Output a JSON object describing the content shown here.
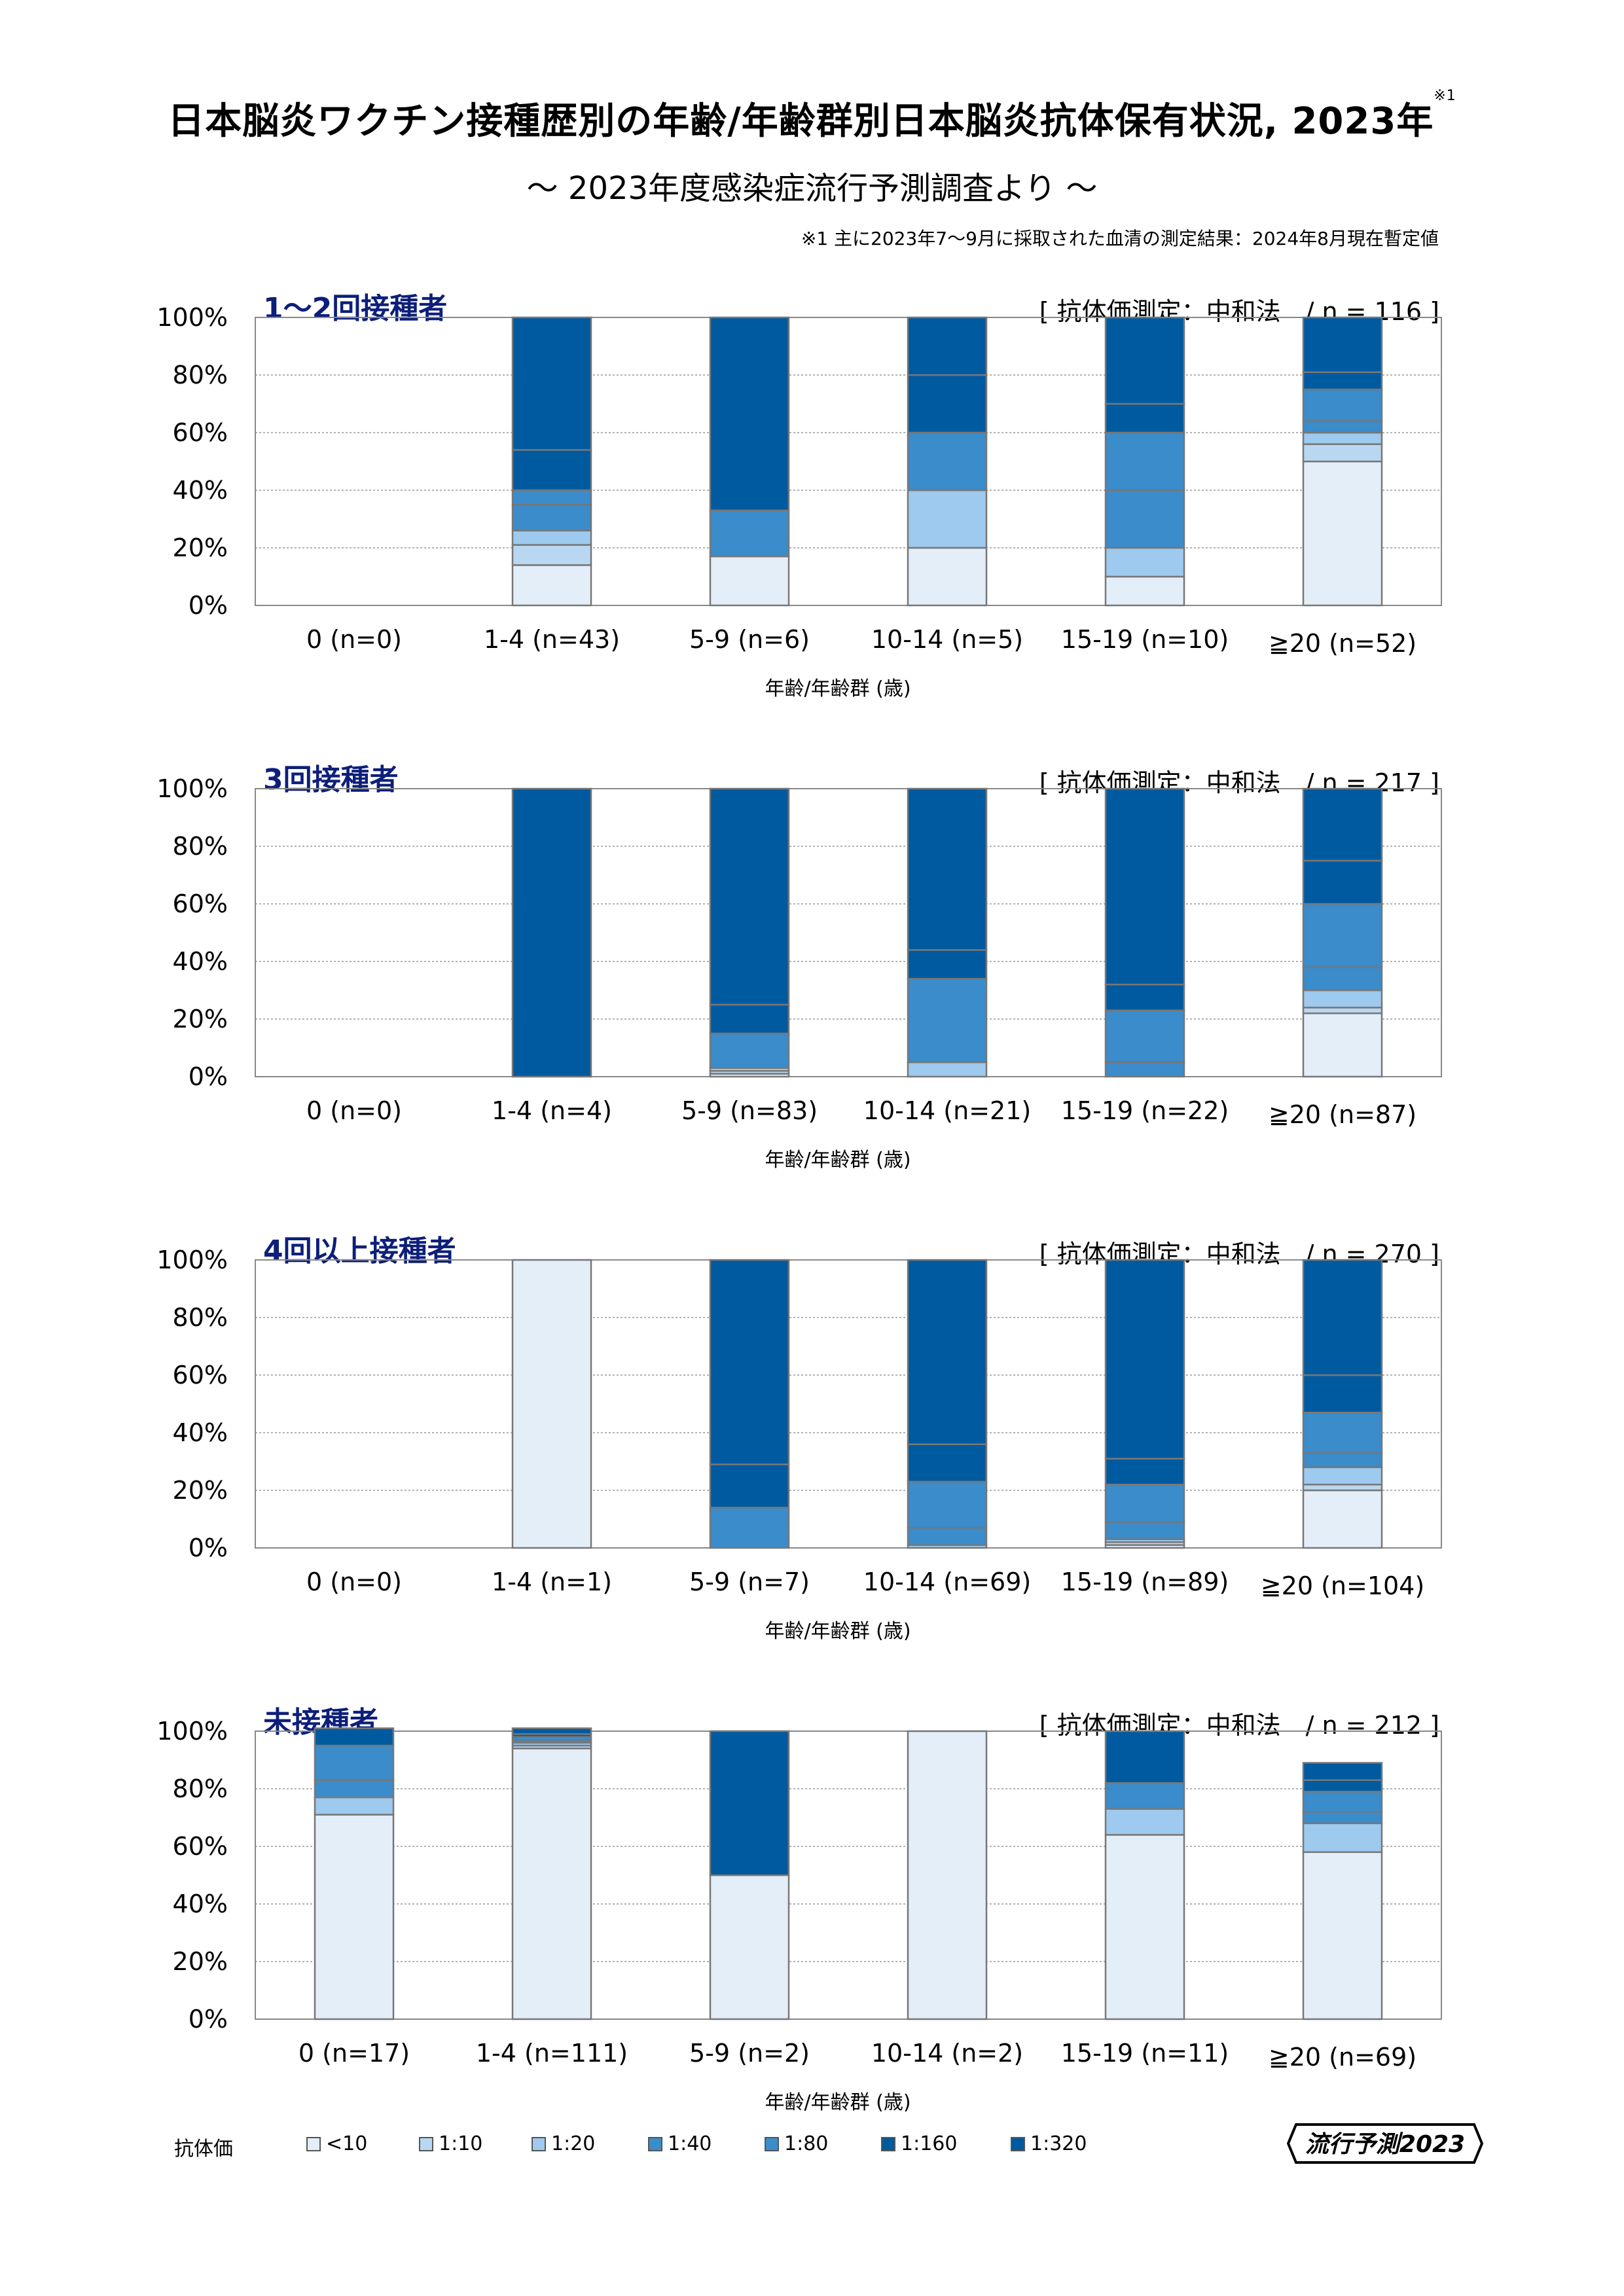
{
  "title": "日本脳炎ワクチン接種歴別の年齢/年齢群別日本脳炎抗体保有状況, 2023年",
  "title_note_mark": "※1",
  "subtitle": "～ 2023年度感染症流行予測調査より ～",
  "note": "※1  主に2023年7～9月に採取された血清の測定結果：2024年8月現在暫定値",
  "legend_title": "抗体価",
  "legend": [
    {
      "label": "<10",
      "color": "#e4eef9"
    },
    {
      "label": "1:10",
      "color": "#b9d7f0"
    },
    {
      "label": "1:20",
      "color": "#9dcaee"
    },
    {
      "label": "1:40",
      "color": "#3a8ccb"
    },
    {
      "label": "1:80",
      "color": "#3a8ccb"
    },
    {
      "label": "1:160",
      "color": "#005aa0"
    },
    {
      "label": "1:320",
      "color": "#005aa0"
    }
  ],
  "logo_text": "流行予測2023",
  "chart_data": [
    {
      "type": "bar",
      "stacked": true,
      "title": "1～2回接種者",
      "meta": "[ 抗体価測定：中和法　/ n = 116 ]",
      "xlabel": "年齢/年齢群 (歳)",
      "yticks": [
        "0%",
        "20%",
        "40%",
        "60%",
        "80%",
        "100%"
      ],
      "ylim": [
        0,
        100
      ],
      "categories": [
        "0 (n=0)",
        "1-4 (n=43)",
        "5-9 (n=6)",
        "10-14 (n=5)",
        "15-19 (n=10)",
        "≧20 (n=52)"
      ],
      "series": [
        {
          "name": "<10",
          "values": [
            0,
            14,
            17,
            20,
            10,
            50
          ]
        },
        {
          "name": "1:10",
          "values": [
            0,
            7,
            0,
            0,
            0,
            6
          ]
        },
        {
          "name": "1:20",
          "values": [
            0,
            5,
            0,
            20,
            10,
            4
          ]
        },
        {
          "name": "1:40",
          "values": [
            0,
            9,
            0,
            0,
            20,
            4
          ]
        },
        {
          "name": "1:80",
          "values": [
            0,
            5,
            16,
            20,
            20,
            11
          ]
        },
        {
          "name": "1:160",
          "values": [
            0,
            14,
            0,
            20,
            10,
            6
          ]
        },
        {
          "name": "1:320",
          "values": [
            0,
            46,
            67,
            20,
            30,
            19
          ]
        }
      ]
    },
    {
      "type": "bar",
      "stacked": true,
      "title": "3回接種者",
      "meta": "[ 抗体価測定：中和法　/ n = 217 ]",
      "xlabel": "年齢/年齢群 (歳)",
      "yticks": [
        "0%",
        "20%",
        "40%",
        "60%",
        "80%",
        "100%"
      ],
      "ylim": [
        0,
        100
      ],
      "categories": [
        "0 (n=0)",
        "1-4 (n=4)",
        "5-9 (n=83)",
        "10-14 (n=21)",
        "15-19 (n=22)",
        "≧20 (n=87)"
      ],
      "series": [
        {
          "name": "<10",
          "values": [
            0,
            0,
            1,
            0,
            0,
            22
          ]
        },
        {
          "name": "1:10",
          "values": [
            0,
            0,
            1,
            0,
            0,
            2
          ]
        },
        {
          "name": "1:20",
          "values": [
            0,
            0,
            1,
            5,
            0,
            6
          ]
        },
        {
          "name": "1:40",
          "values": [
            0,
            0,
            0,
            0,
            5,
            8
          ]
        },
        {
          "name": "1:80",
          "values": [
            0,
            0,
            12,
            29,
            18,
            22
          ]
        },
        {
          "name": "1:160",
          "values": [
            0,
            0,
            10,
            10,
            9,
            15
          ]
        },
        {
          "name": "1:320",
          "values": [
            0,
            100,
            75,
            56,
            68,
            25
          ]
        }
      ]
    },
    {
      "type": "bar",
      "stacked": true,
      "title": "4回以上接種者",
      "meta": "[ 抗体価測定：中和法　/ n = 270 ]",
      "xlabel": "年齢/年齢群 (歳)",
      "yticks": [
        "0%",
        "20%",
        "40%",
        "60%",
        "80%",
        "100%"
      ],
      "ylim": [
        0,
        100
      ],
      "categories": [
        "0 (n=0)",
        "1-4 (n=1)",
        "5-9 (n=7)",
        "10-14 (n=69)",
        "15-19 (n=89)",
        "≧20 (n=104)"
      ],
      "series": [
        {
          "name": "<10",
          "values": [
            0,
            100,
            0,
            0,
            1,
            20
          ]
        },
        {
          "name": "1:10",
          "values": [
            0,
            0,
            0,
            0,
            1,
            2
          ]
        },
        {
          "name": "1:20",
          "values": [
            0,
            0,
            0,
            1,
            1,
            6
          ]
        },
        {
          "name": "1:40",
          "values": [
            0,
            0,
            0,
            6,
            6,
            5
          ]
        },
        {
          "name": "1:80",
          "values": [
            0,
            0,
            14,
            16,
            13,
            14
          ]
        },
        {
          "name": "1:160",
          "values": [
            0,
            0,
            15,
            13,
            9,
            13
          ]
        },
        {
          "name": "1:320",
          "values": [
            0,
            0,
            71,
            64,
            69,
            40
          ]
        }
      ]
    },
    {
      "type": "bar",
      "stacked": true,
      "title": "未接種者",
      "meta": "[ 抗体価測定：中和法　/ n = 212 ]",
      "xlabel": "年齢/年齢群 (歳)",
      "yticks": [
        "0%",
        "20%",
        "40%",
        "60%",
        "80%",
        "100%"
      ],
      "ylim": [
        0,
        100
      ],
      "categories": [
        "0 (n=17)",
        "1-4 (n=111)",
        "5-9 (n=2)",
        "10-14 (n=2)",
        "15-19 (n=11)",
        "≧20 (n=69)"
      ],
      "series": [
        {
          "name": "<10",
          "values": [
            71,
            94,
            50,
            100,
            64,
            58
          ]
        },
        {
          "name": "1:10",
          "values": [
            0,
            1,
            0,
            0,
            0,
            0
          ]
        },
        {
          "name": "1:20",
          "values": [
            6,
            1,
            0,
            0,
            9,
            10
          ]
        },
        {
          "name": "1:40",
          "values": [
            6,
            1,
            0,
            0,
            0,
            4
          ]
        },
        {
          "name": "1:80",
          "values": [
            12,
            1,
            0,
            0,
            9,
            7
          ]
        },
        {
          "name": "1:160",
          "values": [
            0,
            1,
            0,
            0,
            0,
            4
          ]
        },
        {
          "name": "1:320",
          "values": [
            6,
            2,
            50,
            0,
            18,
            6
          ]
        }
      ]
    }
  ]
}
